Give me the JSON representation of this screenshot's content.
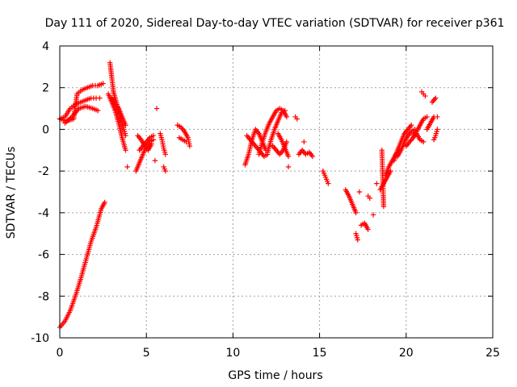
{
  "chart_data": {
    "type": "scatter",
    "title": "Day 111 of 2020, Sidereal Day-to-day VTEC variation (SDTVAR) for receiver p361",
    "xlabel": "GPS time / hours",
    "ylabel": "SDTVAR / TECUs",
    "xlim": [
      0,
      25
    ],
    "ylim": [
      -10,
      4
    ],
    "xticks": [
      0,
      5,
      10,
      15,
      20,
      25
    ],
    "yticks": [
      -10,
      -8,
      -6,
      -4,
      -2,
      0,
      2,
      4
    ],
    "xtick_labels": [
      "0",
      "5",
      "10",
      "15",
      "20",
      "25"
    ],
    "ytick_labels": [
      "-10",
      "-8",
      "-6",
      "-4",
      "-2",
      "0",
      "2",
      "4"
    ],
    "grid": true,
    "marker": "+",
    "color": "#ff0000",
    "segments": [
      {
        "x": [
          0.0,
          0.3,
          0.6,
          0.9,
          1.2,
          1.5,
          1.8,
          2.1,
          2.4,
          2.6
        ],
        "y": [
          -9.5,
          -9.2,
          -8.7,
          -8.0,
          -7.2,
          -6.3,
          -5.4,
          -4.7,
          -3.8,
          -3.5
        ]
      },
      {
        "x": [
          0.0,
          0.3,
          0.6,
          0.9,
          1.2,
          1.5,
          1.8,
          2.1,
          2.3
        ],
        "y": [
          0.5,
          0.6,
          1.0,
          1.2,
          1.3,
          1.4,
          1.5,
          1.5,
          1.5
        ]
      },
      {
        "x": [
          0.0,
          0.4,
          0.8,
          1.0,
          1.3,
          1.6,
          1.9,
          2.2,
          2.5
        ],
        "y": [
          0.5,
          0.4,
          0.5,
          1.7,
          1.9,
          2.0,
          2.1,
          2.1,
          2.2
        ]
      },
      {
        "x": [
          0.3,
          0.7,
          1.1,
          1.5,
          1.9,
          2.2
        ],
        "y": [
          0.3,
          0.6,
          1.0,
          1.1,
          1.0,
          0.9
        ]
      },
      {
        "x": [
          2.9,
          3.0,
          3.1,
          3.3,
          3.5,
          3.7,
          3.8
        ],
        "y": [
          3.2,
          2.5,
          1.8,
          1.2,
          0.6,
          0.0,
          -0.3
        ]
      },
      {
        "x": [
          2.8,
          3.0,
          3.2,
          3.4,
          3.6,
          3.8
        ],
        "y": [
          1.7,
          1.3,
          0.9,
          0.3,
          -0.4,
          -1.0
        ]
      },
      {
        "x": [
          3.0,
          3.2,
          3.4,
          3.6,
          3.8
        ],
        "y": [
          1.5,
          1.2,
          1.0,
          0.6,
          0.2
        ]
      },
      {
        "x": [
          3.9
        ],
        "y": [
          -1.8
        ]
      },
      {
        "x": [
          4.4,
          4.6,
          4.8,
          5.0,
          5.2,
          5.4
        ],
        "y": [
          -2.0,
          -1.6,
          -1.2,
          -0.8,
          -0.6,
          -0.5
        ]
      },
      {
        "x": [
          4.5,
          4.7,
          4.9,
          5.1,
          5.3
        ],
        "y": [
          -0.3,
          -0.5,
          -0.8,
          -1.0,
          -0.7
        ]
      },
      {
        "x": [
          4.6,
          4.8,
          5.0,
          5.2,
          5.4
        ],
        "y": [
          -1.0,
          -0.8,
          -0.6,
          -0.4,
          -0.3
        ]
      },
      {
        "x": [
          5.6
        ],
        "y": [
          1.0
        ]
      },
      {
        "x": [
          5.5
        ],
        "y": [
          -1.5
        ]
      },
      {
        "x": [
          5.8,
          5.9,
          6.0,
          6.1
        ],
        "y": [
          -0.2,
          -0.5,
          -0.9,
          -1.2
        ]
      },
      {
        "x": [
          6.0,
          6.1
        ],
        "y": [
          -1.8,
          -2.0
        ]
      },
      {
        "x": [
          6.8,
          7.0,
          7.2,
          7.4,
          7.5
        ],
        "y": [
          0.2,
          0.1,
          -0.1,
          -0.4,
          -0.8
        ]
      },
      {
        "x": [
          6.9,
          7.1,
          7.3
        ],
        "y": [
          -0.4,
          -0.5,
          -0.6
        ]
      },
      {
        "x": [
          10.7,
          10.9,
          11.1,
          11.3,
          11.5,
          11.7,
          11.9
        ],
        "y": [
          -1.7,
          -1.2,
          -0.5,
          0.0,
          -0.2,
          -0.6,
          -1.0
        ]
      },
      {
        "x": [
          10.8,
          11.0,
          11.2,
          11.4,
          11.6,
          11.8,
          12.0
        ],
        "y": [
          -0.3,
          -0.5,
          -0.7,
          -0.9,
          -1.1,
          -1.3,
          -1.2
        ]
      },
      {
        "x": [
          11.5,
          11.7,
          11.9,
          12.1,
          12.3,
          12.5,
          12.7,
          12.9,
          13.1
        ],
        "y": [
          -1.2,
          -0.6,
          -0.1,
          0.3,
          0.6,
          0.9,
          1.0,
          0.9,
          0.6
        ]
      },
      {
        "x": [
          12.0,
          12.2,
          12.4,
          12.6,
          12.8,
          13.0
        ],
        "y": [
          -1.1,
          -0.5,
          0.0,
          0.4,
          0.8,
          0.9
        ]
      },
      {
        "x": [
          12.3,
          12.5,
          12.7,
          12.9,
          13.1
        ],
        "y": [
          -0.8,
          -1.0,
          -1.2,
          -1.0,
          -0.6
        ]
      },
      {
        "x": [
          12.6,
          12.8,
          13.0,
          13.2
        ],
        "y": [
          -0.2,
          -0.5,
          -0.9,
          -1.3
        ]
      },
      {
        "x": [
          13.2
        ],
        "y": [
          -1.8
        ]
      },
      {
        "x": [
          13.6,
          13.7
        ],
        "y": [
          0.6,
          0.5
        ]
      },
      {
        "x": [
          13.8,
          14.0,
          14.2,
          14.4,
          14.6
        ],
        "y": [
          -1.2,
          -1.0,
          -1.2,
          -1.1,
          -1.3
        ]
      },
      {
        "x": [
          14.1
        ],
        "y": [
          -0.6
        ]
      },
      {
        "x": [
          15.2,
          15.3,
          15.4,
          15.5
        ],
        "y": [
          -2.0,
          -2.2,
          -2.4,
          -2.6
        ]
      },
      {
        "x": [
          16.5,
          16.7,
          16.9,
          17.1
        ],
        "y": [
          -2.9,
          -3.2,
          -3.6,
          -4.0
        ]
      },
      {
        "x": [
          17.1,
          17.2
        ],
        "y": [
          -5.0,
          -5.3
        ]
      },
      {
        "x": [
          17.3
        ],
        "y": [
          -3.0
        ]
      },
      {
        "x": [
          17.4,
          17.6,
          17.8
        ],
        "y": [
          -4.6,
          -4.5,
          -4.8
        ]
      },
      {
        "x": [
          17.8,
          17.9
        ],
        "y": [
          -3.2,
          -3.3
        ]
      },
      {
        "x": [
          18.1
        ],
        "y": [
          -4.1
        ]
      },
      {
        "x": [
          18.3
        ],
        "y": [
          -2.6
        ]
      },
      {
        "x": [
          18.6,
          18.7
        ],
        "y": [
          -1.0,
          -3.7
        ]
      },
      {
        "x": [
          18.5,
          18.7,
          18.9,
          19.1
        ],
        "y": [
          -2.9,
          -2.6,
          -2.3,
          -2.0
        ]
      },
      {
        "x": [
          18.8,
          19.0,
          19.2,
          19.4,
          19.6
        ],
        "y": [
          -2.2,
          -1.8,
          -1.5,
          -1.2,
          -1.0
        ]
      },
      {
        "x": [
          19.3,
          19.5,
          19.7,
          19.9,
          20.1,
          20.3
        ],
        "y": [
          -1.5,
          -1.0,
          -0.6,
          -0.2,
          0.0,
          0.2
        ]
      },
      {
        "x": [
          19.5,
          19.7,
          19.9,
          20.1,
          20.3,
          20.5
        ],
        "y": [
          -1.3,
          -1.0,
          -0.6,
          -0.3,
          -0.1,
          0.0
        ]
      },
      {
        "x": [
          20.0,
          20.2,
          20.4,
          20.6,
          20.8,
          21.0
        ],
        "y": [
          -0.8,
          -0.6,
          -0.4,
          -0.2,
          -0.5,
          -0.6
        ]
      },
      {
        "x": [
          20.4,
          20.6,
          20.8,
          21.0,
          21.2
        ],
        "y": [
          -0.3,
          -0.1,
          0.2,
          0.5,
          0.6
        ]
      },
      {
        "x": [
          20.9,
          21.0,
          21.1
        ],
        "y": [
          1.8,
          1.7,
          1.6
        ]
      },
      {
        "x": [
          21.2,
          21.4,
          21.6,
          21.8
        ],
        "y": [
          0.0,
          0.3,
          0.6,
          0.6
        ]
      },
      {
        "x": [
          21.5,
          21.7
        ],
        "y": [
          1.3,
          1.5
        ]
      },
      {
        "x": [
          21.6,
          21.7,
          21.8
        ],
        "y": [
          -0.5,
          -0.3,
          0.0
        ]
      }
    ]
  }
}
